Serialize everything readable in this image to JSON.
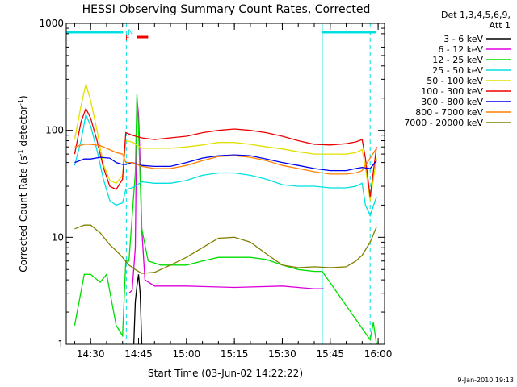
{
  "chart_data": {
    "type": "line",
    "title": "HESSI Observing Summary Count Rates, Corrected",
    "ylabel": "Corrected Count Rate (s",
    "ylabel_sup": "-1",
    "ylabel_mid": " detector",
    "ylabel_tail": ")",
    "xlabel": "Start Time (03-Jun-02 14:22:22)",
    "y_scale": "log",
    "ylim": [
      1,
      1000
    ],
    "xlim": [
      "14:22:22",
      "16:02:00"
    ],
    "x_ticks": [
      "14:30",
      "14:45",
      "15:00",
      "15:15",
      "15:30",
      "15:45",
      "16:00"
    ],
    "y_ticks": [
      "1",
      "10",
      "100",
      "1000"
    ],
    "grid": false,
    "legend_header": [
      "Det 1,3,4,5,6,9,",
      "Att 1"
    ],
    "legend_position": "right",
    "series": [
      {
        "name": "3 - 6 keV",
        "color": "#000000",
        "x": [
          "14:43:30",
          "14:44:00",
          "14:44:30",
          "14:45:00",
          "14:45:30",
          "14:46:00"
        ],
        "values": [
          1,
          2.5,
          3.5,
          4.5,
          3,
          1
        ]
      },
      {
        "name": "6 - 12 keV",
        "color": "#dd00dd",
        "x": [
          "14:42:00",
          "14:43:00",
          "14:44:00",
          "14:44:30",
          "14:45:00",
          "14:45:30",
          "14:46:00",
          "14:47:00",
          "14:50:00",
          "15:00:00",
          "15:15:00",
          "15:30:00",
          "15:40:00",
          "15:43:00"
        ],
        "values": [
          3,
          3.2,
          8,
          200,
          140,
          50,
          12,
          4,
          3.5,
          3.5,
          3.4,
          3.5,
          3.3,
          3.3
        ]
      },
      {
        "name": "12 - 25 keV",
        "color": "#00dd00",
        "x": [
          "14:25:00",
          "14:28:00",
          "14:30:00",
          "14:33:00",
          "14:35:00",
          "14:38:00",
          "14:40:00",
          "14:41:00",
          "14:42:00",
          "14:44:00",
          "14:44:30",
          "14:45:00",
          "14:46:00",
          "14:48:00",
          "14:52:00",
          "15:00:00",
          "15:05:00",
          "15:10:00",
          "15:15:00",
          "15:20:00",
          "15:25:00",
          "15:30:00",
          "15:35:00",
          "15:40:00",
          "15:42:30",
          "15:57:30",
          "15:58:30",
          "15:59:30"
        ],
        "values": [
          1.5,
          4.5,
          4.5,
          3.8,
          4.5,
          1.5,
          1.2,
          6,
          6,
          40,
          220,
          100,
          12,
          6,
          5.5,
          5.5,
          6,
          6.5,
          6.5,
          6.5,
          6.2,
          5.5,
          5,
          4.8,
          4.8,
          1.1,
          1.6,
          1
        ]
      },
      {
        "name": "25 - 50 keV",
        "color": "#00e0e0",
        "x": [
          "14:25:00",
          "14:27:00",
          "14:28:30",
          "14:30:00",
          "14:32:00",
          "14:34:00",
          "14:36:00",
          "14:38:00",
          "14:40:00",
          "14:41:00",
          "14:43:00",
          "14:46:00",
          "14:50:00",
          "14:55:00",
          "15:00:00",
          "15:05:00",
          "15:10:00",
          "15:15:00",
          "15:20:00",
          "15:25:00",
          "15:30:00",
          "15:35:00",
          "15:40:00",
          "15:45:00",
          "15:50:00",
          "15:53:00",
          "15:55:00",
          "15:56:00",
          "15:57:30",
          "15:59:30"
        ],
        "values": [
          47,
          80,
          140,
          110,
          65,
          35,
          22,
          20,
          21,
          28,
          29,
          33,
          32,
          32,
          34,
          38,
          40,
          40,
          38,
          35,
          31,
          30,
          30,
          29,
          29,
          30,
          32,
          20,
          16,
          24
        ]
      },
      {
        "name": "50 - 100 keV",
        "color": "#e0e000",
        "x": [
          "14:25:00",
          "14:27:00",
          "14:28:30",
          "14:30:00",
          "14:32:00",
          "14:34:00",
          "14:36:00",
          "14:38:00",
          "14:40:00",
          "14:41:00",
          "14:43:00",
          "14:46:00",
          "14:50:00",
          "14:55:00",
          "15:00:00",
          "15:05:00",
          "15:10:00",
          "15:15:00",
          "15:20:00",
          "15:25:00",
          "15:30:00",
          "15:35:00",
          "15:40:00",
          "15:45:00",
          "15:50:00",
          "15:53:00",
          "15:55:00",
          "15:56:00",
          "15:57:30",
          "15:59:30"
        ],
        "values": [
          82,
          170,
          270,
          190,
          100,
          48,
          34,
          32,
          38,
          80,
          78,
          68,
          68,
          68,
          70,
          73,
          77,
          77,
          74,
          70,
          67,
          63,
          60,
          60,
          60,
          62,
          66,
          45,
          22,
          55
        ]
      },
      {
        "name": "100 - 300 keV",
        "color": "#ee0000",
        "x": [
          "14:25:00",
          "14:27:00",
          "14:28:30",
          "14:30:00",
          "14:32:00",
          "14:34:00",
          "14:36:00",
          "14:38:00",
          "14:40:00",
          "14:41:00",
          "14:43:00",
          "14:46:00",
          "14:50:00",
          "14:55:00",
          "15:00:00",
          "15:05:00",
          "15:10:00",
          "15:15:00",
          "15:20:00",
          "15:25:00",
          "15:30:00",
          "15:35:00",
          "15:40:00",
          "15:45:00",
          "15:50:00",
          "15:53:00",
          "15:55:00",
          "15:56:00",
          "15:57:30",
          "15:59:30"
        ],
        "values": [
          60,
          120,
          160,
          130,
          80,
          45,
          30,
          28,
          35,
          95,
          90,
          85,
          82,
          85,
          88,
          95,
          100,
          103,
          100,
          95,
          88,
          80,
          74,
          73,
          75,
          78,
          82,
          55,
          24,
          70
        ]
      },
      {
        "name": "300 - 800 keV",
        "color": "#0000ee",
        "x": [
          "14:25:00",
          "14:28:00",
          "14:30:00",
          "14:33:00",
          "14:36:00",
          "14:38:00",
          "14:40:00",
          "14:41:00",
          "14:43:00",
          "14:46:00",
          "14:50:00",
          "14:55:00",
          "15:00:00",
          "15:05:00",
          "15:10:00",
          "15:15:00",
          "15:20:00",
          "15:25:00",
          "15:30:00",
          "15:35:00",
          "15:40:00",
          "15:45:00",
          "15:50:00",
          "15:53:00",
          "15:55:00",
          "15:57:30",
          "15:59:30"
        ],
        "values": [
          50,
          54,
          54,
          56,
          55,
          50,
          48,
          48,
          50,
          47,
          46,
          46,
          50,
          55,
          58,
          59,
          58,
          54,
          50,
          47,
          44,
          42,
          42,
          44,
          45,
          44,
          52
        ]
      },
      {
        "name": "800 - 7000 keV",
        "color": "#ff8000",
        "x": [
          "14:25:00",
          "14:28:00",
          "14:30:00",
          "14:33:00",
          "14:36:00",
          "14:38:00",
          "14:40:00",
          "14:41:00",
          "14:43:00",
          "14:46:00",
          "14:50:00",
          "14:55:00",
          "15:00:00",
          "15:05:00",
          "15:10:00",
          "15:15:00",
          "15:20:00",
          "15:25:00",
          "15:30:00",
          "15:35:00",
          "15:40:00",
          "15:45:00",
          "15:50:00",
          "15:53:00",
          "15:55:00",
          "15:57:30",
          "15:59:30"
        ],
        "values": [
          70,
          74,
          74,
          72,
          66,
          62,
          60,
          50,
          50,
          46,
          44,
          44,
          47,
          52,
          57,
          58,
          56,
          52,
          47,
          44,
          41,
          39,
          39,
          40,
          42,
          55,
          68
        ]
      },
      {
        "name": "7000 - 20000 keV",
        "color": "#808000",
        "x": [
          "14:25:00",
          "14:28:00",
          "14:30:00",
          "14:33:00",
          "14:36:00",
          "14:38:00",
          "14:40:00",
          "14:42:00",
          "14:44:00",
          "14:46:00",
          "14:50:00",
          "14:55:00",
          "15:00:00",
          "15:05:00",
          "15:10:00",
          "15:15:00",
          "15:20:00",
          "15:25:00",
          "15:30:00",
          "15:35:00",
          "15:40:00",
          "15:45:00",
          "15:50:00",
          "15:53:00",
          "15:55:00",
          "15:57:30",
          "15:59:30"
        ],
        "values": [
          12,
          13,
          13,
          11,
          8.5,
          7.5,
          6.5,
          5.5,
          5,
          4.6,
          4.7,
          5.5,
          6.5,
          8,
          9.8,
          10,
          9,
          7,
          5.5,
          5.2,
          5.3,
          5.2,
          5.3,
          6,
          6.8,
          9,
          12.5
        ]
      }
    ],
    "vertical_markers": [
      {
        "style": "dashed",
        "x": "14:41:10",
        "color": "#00e0e0"
      },
      {
        "style": "solid",
        "x": "15:42:30",
        "color": "#00e0e0"
      },
      {
        "style": "dashed",
        "x": "15:57:30",
        "color": "#00e0e0"
      }
    ],
    "status_bars": [
      {
        "x0": "14:22:22",
        "x1": "14:40:10",
        "color": "#00e0e0"
      },
      {
        "x0": "15:42:30",
        "x1": "15:59:30",
        "color": "#00e0e0"
      },
      {
        "label": "F",
        "x0": "14:44:30",
        "x1": "14:48:00",
        "color": "#ee0000"
      }
    ],
    "marker_labels": [
      {
        "text": "N",
        "x": "14:42:30",
        "color": "#00e0e0"
      },
      {
        "text": "F",
        "x": "14:41:30",
        "color": "#ee0000"
      }
    ]
  },
  "timestamp": "9-Jan-2010 19:13"
}
